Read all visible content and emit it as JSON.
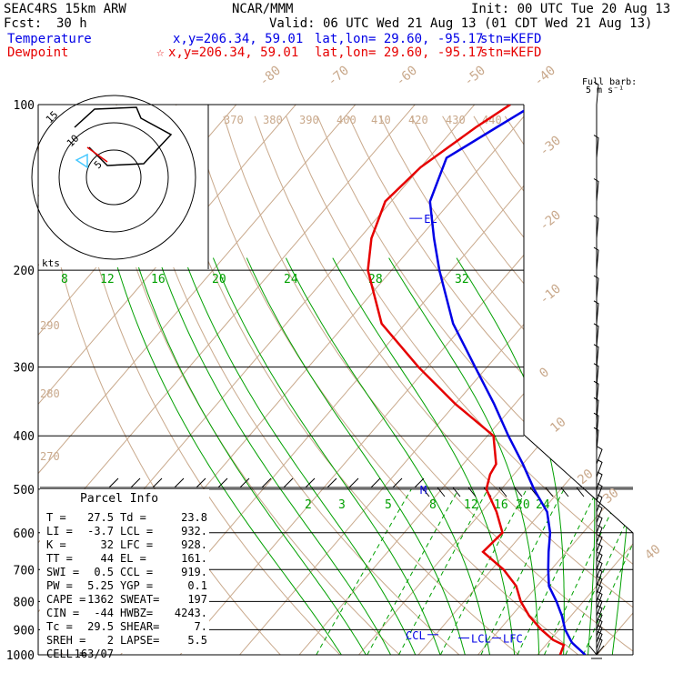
{
  "header": {
    "model": "SEAC4RS 15km ARW",
    "org": "NCAR/MMM",
    "init": "Init: 00 UTC Tue 20 Aug 13",
    "fcst_label": "Fcst:",
    "fcst_value": "30 h",
    "valid": "Valid: 06 UTC Wed 21 Aug 13 (01 CDT Wed 21 Aug 13)",
    "temp_label": "Temperature",
    "temp_xy": "x,y=206.34, 59.01",
    "temp_latlon": "lat,lon= 29.60, -95.17",
    "temp_stn": "stn=KEFD",
    "dew_label": "Dewpoint",
    "dew_xy": "x,y=206.34, 59.01",
    "dew_latlon": "lat,lon= 29.60, -95.17",
    "dew_stn": "stn=KEFD",
    "barb_note1": "Full barb:",
    "barb_note2": "5 m s⁻¹"
  },
  "colors": {
    "temperature": "#0000e6",
    "dewpoint": "#e60000",
    "isotherm": "#c9a98c",
    "dry_adiabat": "#c9a98c",
    "moist_adiabat": "#00a000",
    "mixing_ratio": "#00a000",
    "grid": "#000000"
  },
  "chart_data": {
    "type": "line",
    "title": "",
    "xlabel": "",
    "ylabel": "",
    "pressure_levels": [
      100,
      200,
      300,
      400,
      500,
      600,
      700,
      800,
      900,
      1000
    ],
    "isotherm_labels": [
      -80,
      -70,
      -60,
      -50,
      -40,
      -30,
      -20,
      -10,
      0,
      10,
      20,
      30,
      40
    ],
    "dry_adiabat_labels": [
      370,
      380,
      390,
      400,
      410,
      420,
      430,
      440,
      290,
      280,
      270
    ],
    "moist_adiabat_labels": [
      8,
      12,
      16,
      20,
      24,
      28,
      32
    ],
    "mixing_ratio_labels": [
      2,
      3,
      5,
      8,
      12,
      16,
      20,
      24
    ],
    "series": [
      {
        "name": "Temperature",
        "points": [
          [
            1000,
            28.0
          ],
          [
            950,
            24.0
          ],
          [
            900,
            21.0
          ],
          [
            850,
            18.5
          ],
          [
            800,
            15.5
          ],
          [
            750,
            12.0
          ],
          [
            700,
            9.5
          ],
          [
            650,
            7.0
          ],
          [
            600,
            4.5
          ],
          [
            550,
            1.0
          ],
          [
            500,
            -4.5
          ],
          [
            450,
            -10.0
          ],
          [
            400,
            -16.5
          ],
          [
            350,
            -23.5
          ],
          [
            300,
            -32.0
          ],
          [
            250,
            -42.0
          ],
          [
            200,
            -52.0
          ],
          [
            175,
            -57.5
          ],
          [
            150,
            -63.5
          ],
          [
            125,
            -67.0
          ],
          [
            110,
            -63.0
          ],
          [
            100,
            -60.0
          ]
        ]
      },
      {
        "name": "Dewpoint",
        "points": [
          [
            1000,
            23.8
          ],
          [
            960,
            23.0
          ],
          [
            940,
            20.5
          ],
          [
            900,
            17.0
          ],
          [
            850,
            13.0
          ],
          [
            800,
            9.5
          ],
          [
            750,
            6.5
          ],
          [
            700,
            2.0
          ],
          [
            650,
            -4.0
          ],
          [
            600,
            -3.5
          ],
          [
            550,
            -7.5
          ],
          [
            500,
            -12.5
          ],
          [
            470,
            -14.0
          ],
          [
            450,
            -14.5
          ],
          [
            400,
            -19.0
          ],
          [
            350,
            -30.0
          ],
          [
            300,
            -41.5
          ],
          [
            250,
            -54.0
          ],
          [
            200,
            -64.0
          ],
          [
            175,
            -68.0
          ],
          [
            150,
            -71.0
          ],
          [
            130,
            -70.0
          ],
          [
            110,
            -66.5
          ],
          [
            100,
            -64.0
          ]
        ]
      }
    ],
    "annotations": [
      "EL",
      "LCL",
      "LFC",
      "CCL",
      "M"
    ]
  },
  "panel": {
    "kts": "kts",
    "hodo_labels": [
      "15",
      "10",
      "5"
    ],
    "parcel_title": "Parcel Info",
    "rows": [
      [
        "T  =",
        "27.5",
        "Td =",
        "23.8"
      ],
      [
        "LI =",
        "-3.7",
        "LCL =",
        "932."
      ],
      [
        "K  =",
        "32",
        "LFC =",
        "928."
      ],
      [
        "TT =",
        "44",
        "EL  =",
        "161."
      ],
      [
        "SWI =",
        "0.5",
        "CCL =",
        "919."
      ],
      [
        "PW =",
        "5.25",
        "YGP =",
        "0.1"
      ],
      [
        "CAPE =",
        "1362",
        "SWEAT=",
        "197"
      ],
      [
        "CIN =",
        "-44",
        "HWBZ=",
        "4243."
      ],
      [
        "Tc =",
        "29.5",
        "SHEAR=",
        "7."
      ],
      [
        "SREH =",
        "2",
        "LAPSE=",
        "5.5"
      ],
      [
        "CELL =",
        "163/07",
        "",
        ""
      ]
    ]
  }
}
